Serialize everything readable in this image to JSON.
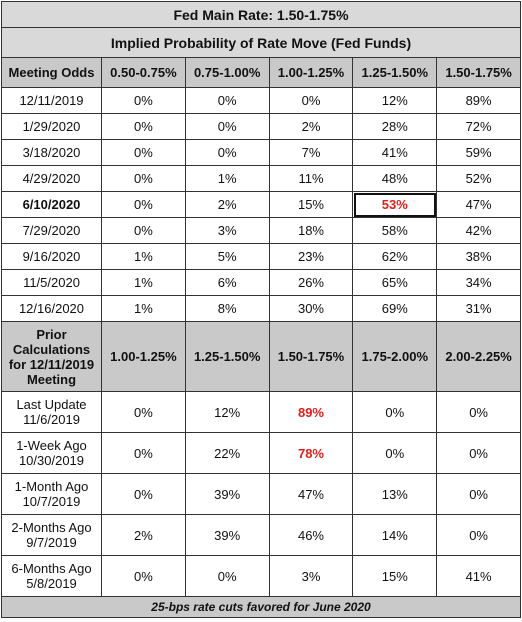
{
  "title": "Fed Main Rate: 1.50-1.75%",
  "subtitle": "Implied Probability of Rate Move (Fed Funds)",
  "table1": {
    "header": [
      "Meeting Odds",
      "0.50-0.75%",
      "0.75-1.00%",
      "1.00-1.25%",
      "1.25-1.50%",
      "1.50-1.75%"
    ],
    "rows": [
      [
        "12/11/2019",
        "0%",
        "0%",
        "0%",
        "12%",
        "89%"
      ],
      [
        "1/29/2020",
        "0%",
        "0%",
        "2%",
        "28%",
        "72%"
      ],
      [
        "3/18/2020",
        "0%",
        "0%",
        "7%",
        "41%",
        "59%"
      ],
      [
        "4/29/2020",
        "0%",
        "1%",
        "11%",
        "48%",
        "52%"
      ],
      [
        "6/10/2020",
        "0%",
        "2%",
        "15%",
        "53%",
        "47%"
      ],
      [
        "7/29/2020",
        "0%",
        "3%",
        "18%",
        "58%",
        "42%"
      ],
      [
        "9/16/2020",
        "1%",
        "5%",
        "23%",
        "62%",
        "38%"
      ],
      [
        "11/5/2020",
        "1%",
        "6%",
        "26%",
        "65%",
        "34%"
      ],
      [
        "12/16/2020",
        "1%",
        "8%",
        "30%",
        "69%",
        "31%"
      ]
    ]
  },
  "table2": {
    "header": [
      "Prior\nCalculations\nfor 12/11/2019\nMeeting",
      "1.00-1.25%",
      "1.25-1.50%",
      "1.50-1.75%",
      "1.75-2.00%",
      "2.00-2.25%"
    ],
    "rows": [
      [
        "Last Update\n11/6/2019",
        "0%",
        "12%",
        "89%",
        "0%",
        "0%"
      ],
      [
        "1-Week Ago\n10/30/2019",
        "0%",
        "22%",
        "78%",
        "0%",
        "0%"
      ],
      [
        "1-Month Ago\n10/7/2019",
        "0%",
        "39%",
        "47%",
        "13%",
        "0%"
      ],
      [
        "2-Months Ago\n9/7/2019",
        "2%",
        "39%",
        "46%",
        "14%",
        "0%"
      ],
      [
        "6-Months Ago\n5/8/2019",
        "0%",
        "0%",
        "3%",
        "15%",
        "41%"
      ]
    ]
  },
  "footer": "25-bps rate cuts favored for June 2020"
}
